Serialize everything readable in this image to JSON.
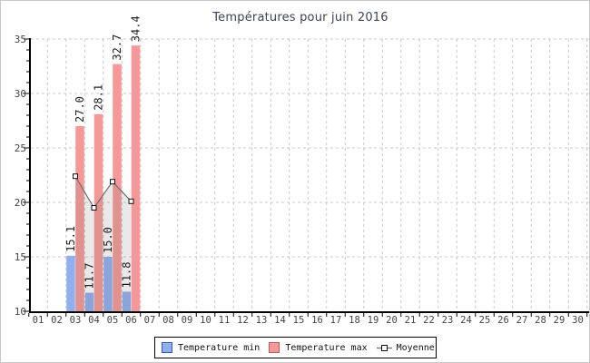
{
  "chart_data": {
    "type": "bar",
    "title": "Températures pour juin 2016",
    "x_tick_labels": [
      "01",
      "02",
      "03",
      "04",
      "05",
      "06",
      "07",
      "08",
      "09",
      "10",
      "11",
      "12",
      "13",
      "14",
      "15",
      "16",
      "17",
      "18",
      "19",
      "20",
      "21",
      "22",
      "23",
      "24",
      "25",
      "26",
      "27",
      "28",
      "29",
      "30"
    ],
    "xlabel": "",
    "ylabel": "",
    "ylim": [
      10,
      35
    ],
    "y_major_ticks": [
      10,
      15,
      20,
      25,
      30,
      35
    ],
    "y_minor_step": 1,
    "grid": "dashed",
    "legend_position": "bottom",
    "days_with_data": [
      3,
      4,
      5,
      6
    ],
    "series": [
      {
        "name": "Temperature min",
        "type": "bar",
        "values": [
          15.1,
          11.7,
          15.0,
          11.8
        ]
      },
      {
        "name": "Temperature max",
        "type": "bar",
        "values": [
          27.0,
          28.1,
          32.7,
          34.4
        ]
      },
      {
        "name": "Moyenne",
        "type": "line",
        "values": [
          22.4,
          19.5,
          21.9,
          20.1
        ],
        "estimated_from_pixels": true
      }
    ],
    "bar_value_labels_rotated_90": true
  },
  "colors": {
    "bar_min_fill": "#8fafef",
    "bar_min_border": "#3a57b8",
    "bar_max_fill": "#f79898",
    "bar_max_border": "#b06060",
    "moyenne_line": "#6e6e6e",
    "moyenne_marker_fill": "#ffffff",
    "moyenne_marker_border": "#111111",
    "moyenne_area_fill": "rgba(110,110,110,0.15)",
    "grid_line": "#c9c9c9",
    "axis_line": "#000000",
    "title_text": "#3b4456",
    "tick_text": "#444444",
    "bar_label_text": "#222222"
  }
}
